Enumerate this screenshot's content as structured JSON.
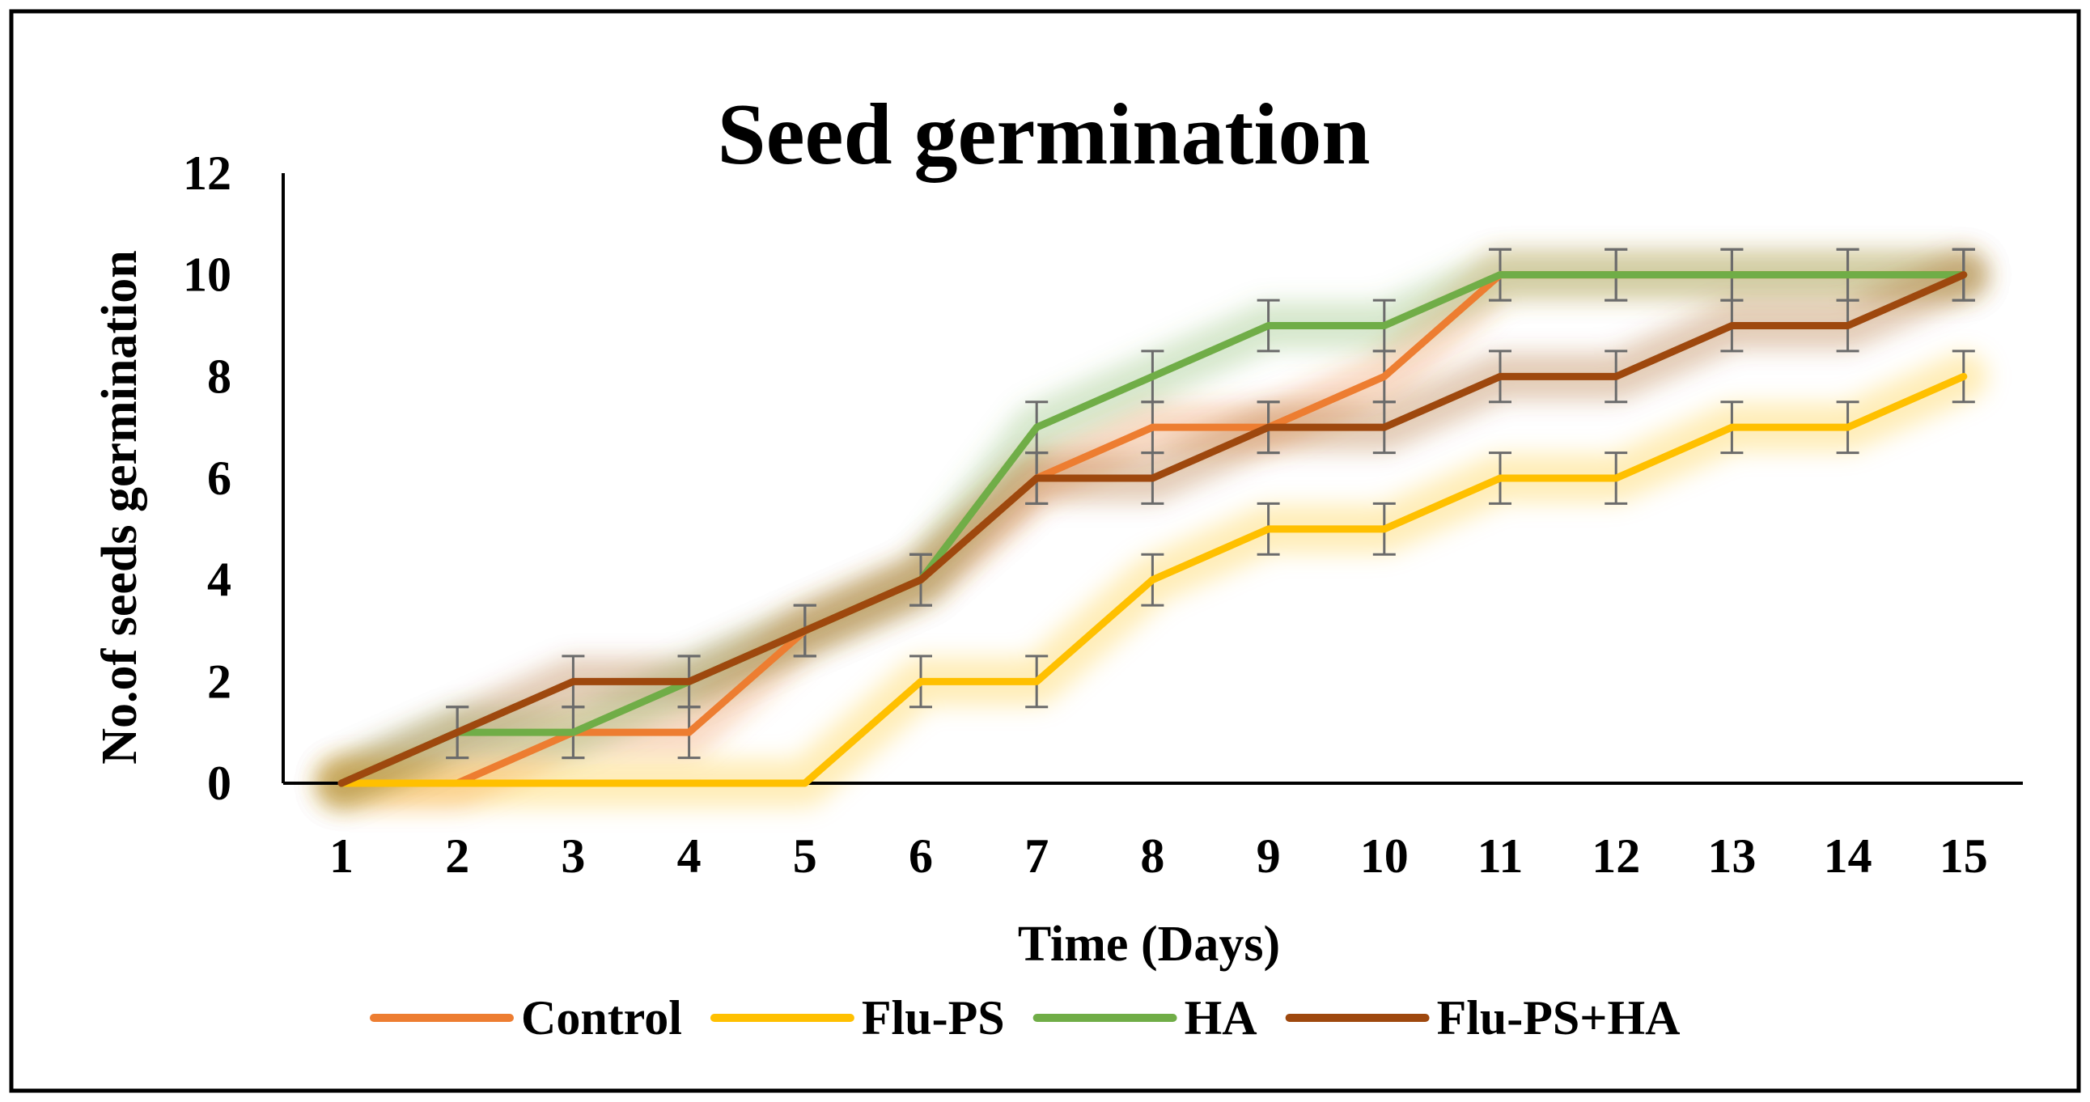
{
  "chart_data": {
    "type": "line",
    "title": "Seed germination",
    "xlabel": "Time (Days)",
    "ylabel": "No.of seeds germination",
    "x": [
      1,
      2,
      3,
      4,
      5,
      6,
      7,
      8,
      9,
      10,
      11,
      12,
      13,
      14,
      15
    ],
    "ylim": [
      0,
      12
    ],
    "yticks": [
      0,
      2,
      4,
      6,
      8,
      10,
      12
    ],
    "grid": false,
    "legend_position": "bottom",
    "error_bar": 0.5,
    "series": [
      {
        "name": "Control",
        "color": "#ED7D31",
        "values": [
          0,
          0,
          1,
          1,
          3,
          4,
          6,
          7,
          7,
          8,
          10,
          10,
          10,
          10,
          10
        ]
      },
      {
        "name": "Flu-PS",
        "color": "#FFC000",
        "values": [
          0,
          0,
          0,
          0,
          0,
          2,
          2,
          4,
          5,
          5,
          6,
          6,
          7,
          7,
          8
        ]
      },
      {
        "name": "HA",
        "color": "#70AD47",
        "values": [
          0,
          1,
          1,
          2,
          3,
          4,
          7,
          8,
          9,
          9,
          10,
          10,
          10,
          10,
          10
        ]
      },
      {
        "name": "Flu-PS+HA",
        "color": "#9E480E",
        "values": [
          0,
          1,
          2,
          2,
          3,
          4,
          6,
          6,
          7,
          7,
          8,
          8,
          9,
          9,
          10
        ]
      }
    ]
  }
}
